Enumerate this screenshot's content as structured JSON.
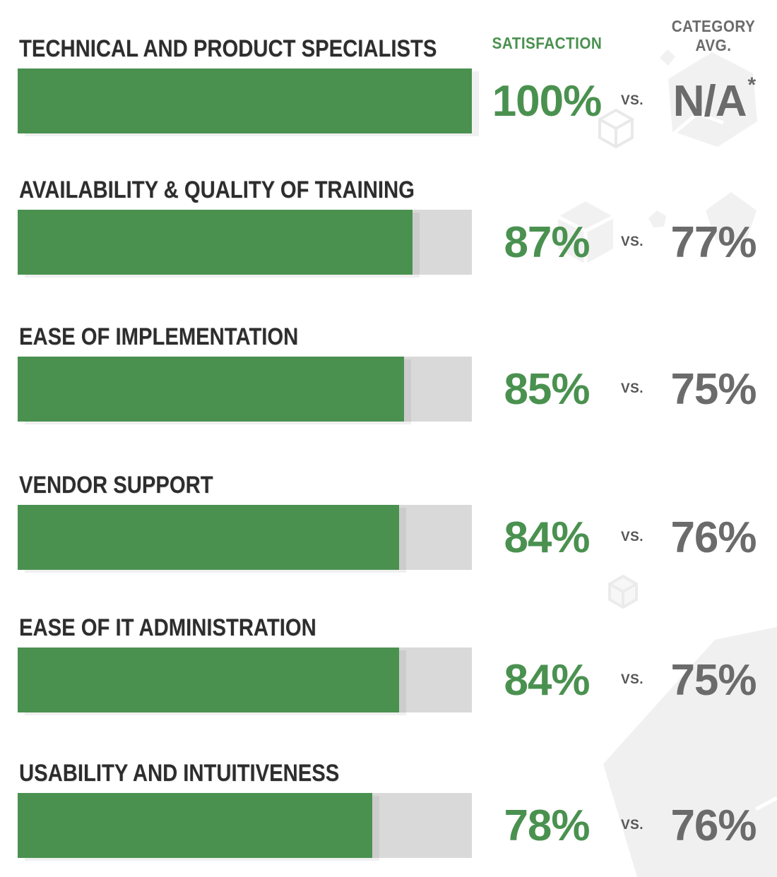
{
  "columns": {
    "satisfaction_label": "SATISFACTION",
    "category_avg_label_line1": "CATEGORY",
    "category_avg_label_line2": "AVG.",
    "vs_label": "VS."
  },
  "colors": {
    "satisfaction_green": "#4a9150",
    "category_gray": "#6b6b6b",
    "label_dark": "#2d2d2d",
    "bar_track_gray": "#d9d9d9",
    "decor_light_gray": "#f1f1f1"
  },
  "rows": [
    {
      "label": "TECHNICAL AND PRODUCT SPECIALISTS",
      "satisfaction_display": "100%",
      "category_display": "N/A",
      "category_sup": "*"
    },
    {
      "label": "AVAILABILITY & QUALITY OF TRAINING",
      "satisfaction_display": "87%",
      "category_display": "77%",
      "category_sup": ""
    },
    {
      "label": "EASE OF IMPLEMENTATION",
      "satisfaction_display": "85%",
      "category_display": "75%",
      "category_sup": ""
    },
    {
      "label": "VENDOR SUPPORT",
      "satisfaction_display": "84%",
      "category_display": "76%",
      "category_sup": ""
    },
    {
      "label": "EASE OF IT ADMINISTRATION",
      "satisfaction_display": "84%",
      "category_display": "75%",
      "category_sup": ""
    },
    {
      "label": "USABILITY AND INTUITIVENESS",
      "satisfaction_display": "78%",
      "category_display": "76%",
      "category_sup": ""
    }
  ],
  "chart_data": {
    "type": "bar",
    "orientation": "horizontal",
    "categories": [
      "TECHNICAL AND PRODUCT SPECIALISTS",
      "AVAILABILITY & QUALITY OF TRAINING",
      "EASE OF IMPLEMENTATION",
      "VENDOR SUPPORT",
      "EASE OF IT ADMINISTRATION",
      "USABILITY AND INTUITIVENESS"
    ],
    "series": [
      {
        "name": "SATISFACTION",
        "values": [
          100,
          87,
          85,
          84,
          84,
          78
        ]
      },
      {
        "name": "CATEGORY AVG.",
        "values": [
          null,
          77,
          75,
          76,
          75,
          76
        ]
      }
    ],
    "value_labels": {
      "satisfaction": [
        "100%",
        "87%",
        "85%",
        "84%",
        "84%",
        "78%"
      ],
      "category_avg": [
        "N/A*",
        "77%",
        "75%",
        "76%",
        "75%",
        "76%"
      ]
    },
    "xlim": [
      0,
      100
    ],
    "value_suffix": "%",
    "bar_color": "#4a9150",
    "track_color": "#d9d9d9",
    "grid": false,
    "legend_position": "top-right-column-headers"
  }
}
